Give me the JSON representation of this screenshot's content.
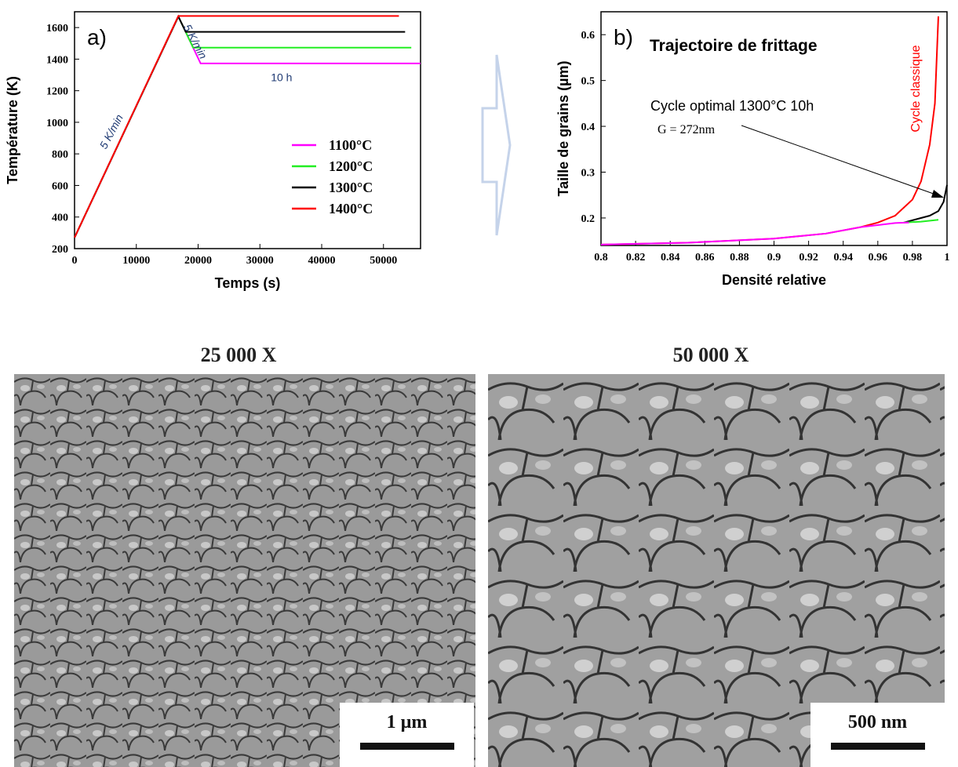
{
  "chart_data": [
    {
      "panel": "a)",
      "type": "line",
      "xlabel": "Temps (s)",
      "ylabel": "Température (K)",
      "xlim": [
        0,
        56000
      ],
      "ylim": [
        200,
        1700
      ],
      "xticks": [
        "0",
        "10000",
        "20000",
        "30000",
        "40000",
        "50000"
      ],
      "yticks": [
        "200",
        "400",
        "600",
        "800",
        "1000",
        "1200",
        "1400",
        "1600"
      ],
      "annotations": [
        "5 K/min",
        "5 K/min",
        "10 h"
      ],
      "legend_position": "center-right",
      "series": [
        {
          "name": "1100°C",
          "color": "#ff00ff",
          "x": [
            0,
            16800,
            20400,
            56000
          ],
          "y": [
            270,
            1670,
            1373,
            1373
          ]
        },
        {
          "name": "1200°C",
          "color": "#22ee22",
          "x": [
            0,
            16800,
            19200,
            54500
          ],
          "y": [
            270,
            1670,
            1473,
            1473
          ]
        },
        {
          "name": "1300°C",
          "color": "#000000",
          "x": [
            0,
            16800,
            18000,
            53500
          ],
          "y": [
            270,
            1670,
            1573,
            1573
          ]
        },
        {
          "name": "1400°C",
          "color": "#ff0000",
          "x": [
            0,
            16800,
            52500
          ],
          "y": [
            270,
            1673,
            1673
          ]
        }
      ]
    },
    {
      "panel": "b)",
      "type": "line",
      "title": "Trajectoire de frittage",
      "xlabel": "Densité relative",
      "ylabel": "Taille de grains (µm)",
      "xlim": [
        0.8,
        1.0
      ],
      "ylim": [
        0.14,
        0.65
      ],
      "xticks": [
        "0.8",
        "0.82",
        "0.84",
        "0.86",
        "0.88",
        "0.9",
        "0.92",
        "0.94",
        "0.96",
        "0.98",
        "1"
      ],
      "yticks": [
        "0.2",
        "0.3",
        "0.4",
        "0.5",
        "0.6"
      ],
      "annotation": "Cycle optimal 1300°C 10h",
      "annotation2": "G = 272nm",
      "curve_label": "Cycle classique",
      "series": [
        {
          "name": "Cycle classique",
          "color": "#ff0000",
          "x": [
            0.8,
            0.85,
            0.9,
            0.93,
            0.95,
            0.96,
            0.97,
            0.98,
            0.985,
            0.99,
            0.993,
            0.995
          ],
          "y": [
            0.142,
            0.146,
            0.155,
            0.166,
            0.18,
            0.19,
            0.205,
            0.24,
            0.28,
            0.36,
            0.45,
            0.64
          ]
        },
        {
          "name": "1300°C",
          "color": "#000000",
          "x": [
            0.975,
            0.98,
            0.99,
            0.995,
            0.998,
            1.0
          ],
          "y": [
            0.19,
            0.195,
            0.205,
            0.215,
            0.235,
            0.272
          ]
        },
        {
          "name": "1200°C",
          "color": "#22ee22",
          "x": [
            0.975,
            0.985,
            0.995
          ],
          "y": [
            0.19,
            0.192,
            0.196
          ]
        },
        {
          "name": "1100°C",
          "color": "#ff00ff",
          "x": [
            0.8,
            0.85,
            0.9,
            0.93,
            0.95,
            0.97,
            0.978
          ],
          "y": [
            0.142,
            0.146,
            0.155,
            0.166,
            0.18,
            0.189,
            0.19
          ]
        }
      ]
    }
  ],
  "sem": {
    "left": {
      "title": "25 000 X",
      "scalebar": "1 µm"
    },
    "right": {
      "title": "50 000 X",
      "scalebar": "500 nm"
    }
  }
}
